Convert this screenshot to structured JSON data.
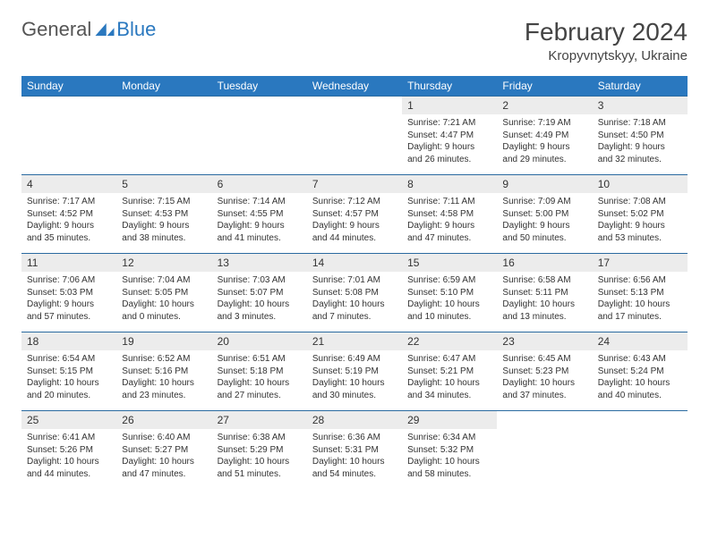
{
  "logo": {
    "text1": "General",
    "text2": "Blue"
  },
  "title": "February 2024",
  "location": "Kropyvnytskyy, Ukraine",
  "colors": {
    "header_bg": "#2a78bf",
    "header_text": "#ffffff",
    "daynum_bg": "#ececec",
    "row_divider": "#2a6aa0",
    "text": "#333333",
    "logo_blue": "#2a78bf"
  },
  "dow": [
    "Sunday",
    "Monday",
    "Tuesday",
    "Wednesday",
    "Thursday",
    "Friday",
    "Saturday"
  ],
  "weeks": [
    [
      null,
      null,
      null,
      null,
      {
        "n": "1",
        "sr": "7:21 AM",
        "ss": "4:47 PM",
        "dl": "9 hours and 26 minutes."
      },
      {
        "n": "2",
        "sr": "7:19 AM",
        "ss": "4:49 PM",
        "dl": "9 hours and 29 minutes."
      },
      {
        "n": "3",
        "sr": "7:18 AM",
        "ss": "4:50 PM",
        "dl": "9 hours and 32 minutes."
      }
    ],
    [
      {
        "n": "4",
        "sr": "7:17 AM",
        "ss": "4:52 PM",
        "dl": "9 hours and 35 minutes."
      },
      {
        "n": "5",
        "sr": "7:15 AM",
        "ss": "4:53 PM",
        "dl": "9 hours and 38 minutes."
      },
      {
        "n": "6",
        "sr": "7:14 AM",
        "ss": "4:55 PM",
        "dl": "9 hours and 41 minutes."
      },
      {
        "n": "7",
        "sr": "7:12 AM",
        "ss": "4:57 PM",
        "dl": "9 hours and 44 minutes."
      },
      {
        "n": "8",
        "sr": "7:11 AM",
        "ss": "4:58 PM",
        "dl": "9 hours and 47 minutes."
      },
      {
        "n": "9",
        "sr": "7:09 AM",
        "ss": "5:00 PM",
        "dl": "9 hours and 50 minutes."
      },
      {
        "n": "10",
        "sr": "7:08 AM",
        "ss": "5:02 PM",
        "dl": "9 hours and 53 minutes."
      }
    ],
    [
      {
        "n": "11",
        "sr": "7:06 AM",
        "ss": "5:03 PM",
        "dl": "9 hours and 57 minutes."
      },
      {
        "n": "12",
        "sr": "7:04 AM",
        "ss": "5:05 PM",
        "dl": "10 hours and 0 minutes."
      },
      {
        "n": "13",
        "sr": "7:03 AM",
        "ss": "5:07 PM",
        "dl": "10 hours and 3 minutes."
      },
      {
        "n": "14",
        "sr": "7:01 AM",
        "ss": "5:08 PM",
        "dl": "10 hours and 7 minutes."
      },
      {
        "n": "15",
        "sr": "6:59 AM",
        "ss": "5:10 PM",
        "dl": "10 hours and 10 minutes."
      },
      {
        "n": "16",
        "sr": "6:58 AM",
        "ss": "5:11 PM",
        "dl": "10 hours and 13 minutes."
      },
      {
        "n": "17",
        "sr": "6:56 AM",
        "ss": "5:13 PM",
        "dl": "10 hours and 17 minutes."
      }
    ],
    [
      {
        "n": "18",
        "sr": "6:54 AM",
        "ss": "5:15 PM",
        "dl": "10 hours and 20 minutes."
      },
      {
        "n": "19",
        "sr": "6:52 AM",
        "ss": "5:16 PM",
        "dl": "10 hours and 23 minutes."
      },
      {
        "n": "20",
        "sr": "6:51 AM",
        "ss": "5:18 PM",
        "dl": "10 hours and 27 minutes."
      },
      {
        "n": "21",
        "sr": "6:49 AM",
        "ss": "5:19 PM",
        "dl": "10 hours and 30 minutes."
      },
      {
        "n": "22",
        "sr": "6:47 AM",
        "ss": "5:21 PM",
        "dl": "10 hours and 34 minutes."
      },
      {
        "n": "23",
        "sr": "6:45 AM",
        "ss": "5:23 PM",
        "dl": "10 hours and 37 minutes."
      },
      {
        "n": "24",
        "sr": "6:43 AM",
        "ss": "5:24 PM",
        "dl": "10 hours and 40 minutes."
      }
    ],
    [
      {
        "n": "25",
        "sr": "6:41 AM",
        "ss": "5:26 PM",
        "dl": "10 hours and 44 minutes."
      },
      {
        "n": "26",
        "sr": "6:40 AM",
        "ss": "5:27 PM",
        "dl": "10 hours and 47 minutes."
      },
      {
        "n": "27",
        "sr": "6:38 AM",
        "ss": "5:29 PM",
        "dl": "10 hours and 51 minutes."
      },
      {
        "n": "28",
        "sr": "6:36 AM",
        "ss": "5:31 PM",
        "dl": "10 hours and 54 minutes."
      },
      {
        "n": "29",
        "sr": "6:34 AM",
        "ss": "5:32 PM",
        "dl": "10 hours and 58 minutes."
      },
      null,
      null
    ]
  ],
  "labels": {
    "sunrise": "Sunrise: ",
    "sunset": "Sunset: ",
    "daylight": "Daylight: "
  }
}
